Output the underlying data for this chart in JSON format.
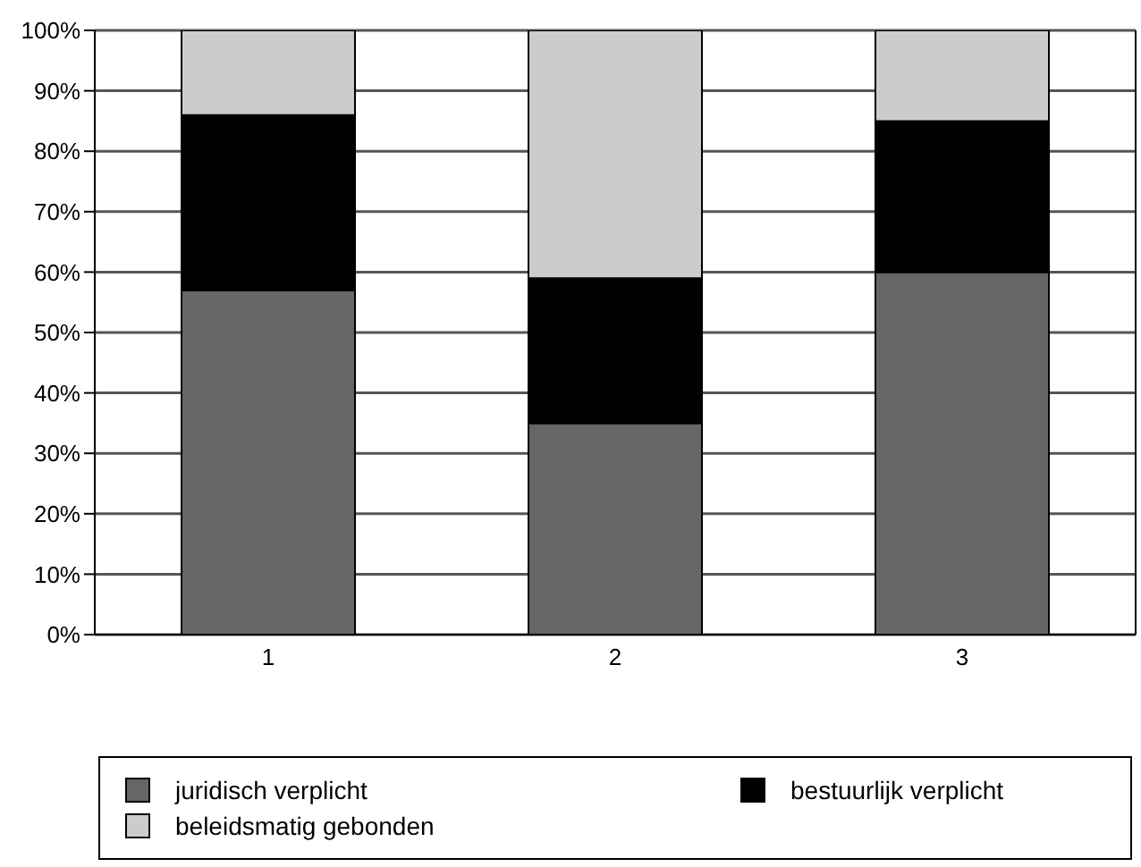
{
  "chart_data": {
    "type": "bar",
    "stacked": true,
    "categories": [
      "1",
      "2",
      "3"
    ],
    "series": [
      {
        "name": "juridisch verplicht",
        "color": "#666666",
        "values": [
          57,
          35,
          60
        ]
      },
      {
        "name": "bestuurlijk verplicht",
        "color": "#000000",
        "values": [
          29,
          24,
          25
        ]
      },
      {
        "name": "beleidsmatig gebonden",
        "color": "#cccccc",
        "values": [
          14,
          41,
          15
        ]
      }
    ],
    "ylim": [
      0,
      100
    ],
    "yticks": [
      {
        "value": 0,
        "label": "0%"
      },
      {
        "value": 10,
        "label": "10%"
      },
      {
        "value": 20,
        "label": "20%"
      },
      {
        "value": 30,
        "label": "30%"
      },
      {
        "value": 40,
        "label": "40%"
      },
      {
        "value": 50,
        "label": "50%"
      },
      {
        "value": 60,
        "label": "60%"
      },
      {
        "value": 70,
        "label": "70%"
      },
      {
        "value": 80,
        "label": "80%"
      },
      {
        "value": 90,
        "label": "90%"
      },
      {
        "value": 100,
        "label": "100%"
      }
    ],
    "grid": "y",
    "legend": "bottom"
  }
}
